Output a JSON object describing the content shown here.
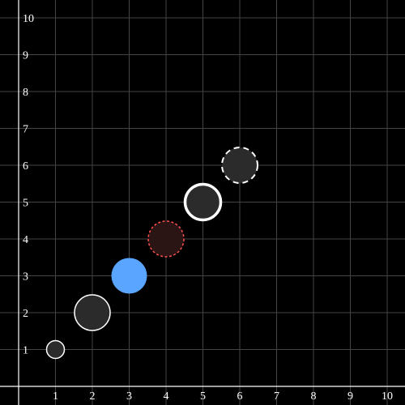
{
  "chart_data": {
    "type": "scatter",
    "title": "",
    "xlabel": "",
    "ylabel": "",
    "xlim": [
      0,
      10.5
    ],
    "ylim": [
      0,
      10.5
    ],
    "grid": true,
    "x_ticks": [
      "1",
      "2",
      "3",
      "4",
      "5",
      "6",
      "7",
      "8",
      "9",
      "10"
    ],
    "y_ticks": [
      "1",
      "2",
      "3",
      "4",
      "5",
      "6",
      "7",
      "8",
      "9",
      "10"
    ],
    "points": [
      {
        "x": 1,
        "y": 1,
        "size": "small",
        "fill": "#2b2b2b",
        "stroke": "#ffffff",
        "stroke_style": "solid"
      },
      {
        "x": 2,
        "y": 2,
        "size": "medium",
        "fill": "#2b2b2b",
        "stroke": "#ffffff",
        "stroke_style": "solid"
      },
      {
        "x": 3,
        "y": 3,
        "size": "medium",
        "fill": "#5aa5ff",
        "stroke": "none",
        "stroke_style": "none"
      },
      {
        "x": 4,
        "y": 4,
        "size": "medium",
        "fill": "#2a1414",
        "stroke": "#ff5050",
        "stroke_style": "dotted"
      },
      {
        "x": 5,
        "y": 5,
        "size": "medium",
        "fill": "#2b2b2b",
        "stroke": "#ffffff",
        "stroke_style": "thick"
      },
      {
        "x": 6,
        "y": 6,
        "size": "medium",
        "fill": "#2b2b2b",
        "stroke": "#ffffff",
        "stroke_style": "dashed"
      }
    ],
    "colors": {
      "background": "#000000",
      "grid": "#444444",
      "axis": "#ffffff",
      "text": "#ffffff"
    }
  }
}
